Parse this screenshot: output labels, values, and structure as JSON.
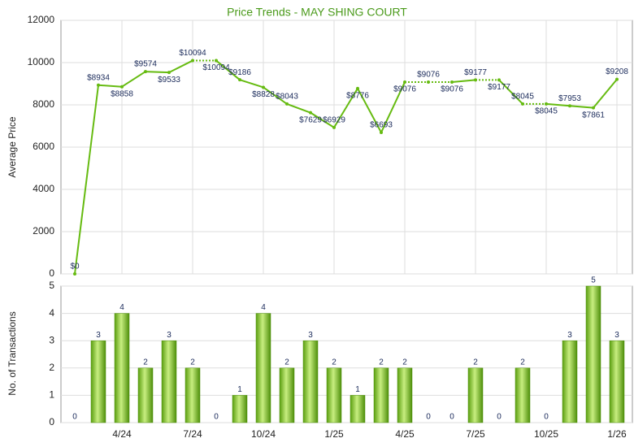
{
  "chart_data": [
    {
      "type": "line",
      "title": "Price Trends - MAY SHING COURT",
      "y_label": "Average Price",
      "categories": [
        null,
        null,
        "4/24",
        null,
        null,
        "7/24",
        null,
        null,
        "10/24",
        null,
        null,
        "1/25",
        null,
        null,
        "4/25",
        null,
        null,
        "7/25",
        null,
        null,
        "10/25",
        null,
        null,
        "1/26"
      ],
      "values": [
        0,
        8934,
        8858,
        9574,
        9533,
        10094,
        10094,
        9186,
        8828,
        8043,
        7629,
        6929,
        8776,
        6693,
        9076,
        9076,
        9076,
        9177,
        9177,
        8045,
        8045,
        7953,
        7861,
        9208
      ],
      "value_labels": [
        "$0",
        "$8934",
        "$8858",
        "$9574",
        "$9533",
        "$10094",
        "$10094",
        "$9186",
        "$8828",
        "$8043",
        "$7629",
        "$6929",
        "$8776",
        "$6693",
        "$9076",
        "$9076",
        "$9076",
        "$9177",
        "$9177",
        "$8045",
        "$8045",
        "$7953",
        "$7861",
        "$9208"
      ],
      "color": "#66bb11",
      "ylim": [
        0,
        12000
      ],
      "yticks": [
        0,
        2000,
        4000,
        6000,
        8000,
        10000,
        12000
      ],
      "grid": true
    },
    {
      "type": "bar",
      "y_label": "No. of Transactions",
      "categories": [
        null,
        null,
        "4/24",
        null,
        null,
        "7/24",
        null,
        null,
        "10/24",
        null,
        null,
        "1/25",
        null,
        null,
        "4/25",
        null,
        null,
        "7/25",
        null,
        null,
        "10/25",
        null,
        null,
        "1/26"
      ],
      "values": [
        0,
        3,
        4,
        2,
        3,
        2,
        0,
        1,
        4,
        2,
        3,
        2,
        1,
        2,
        2,
        0,
        0,
        2,
        0,
        2,
        0,
        3,
        5,
        3
      ],
      "color": "#66bb11",
      "ylim": [
        0,
        5
      ],
      "yticks": [
        0,
        1,
        2,
        3,
        4,
        5
      ],
      "grid": true
    }
  ]
}
